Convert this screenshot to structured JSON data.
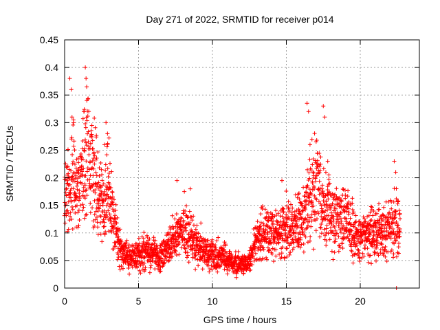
{
  "chart_data": {
    "type": "scatter",
    "title": "Day 271 of 2022, SRMTID for receiver p014",
    "xlabel": "GPS time / hours",
    "ylabel": "SRMTID / TECUs",
    "xlim": [
      0,
      24
    ],
    "ylim": [
      0,
      0.45
    ],
    "xticks": [
      0,
      5,
      10,
      15,
      20
    ],
    "yticks": [
      0,
      0.05,
      0.1,
      0.15,
      0.2,
      0.25,
      0.3,
      0.35,
      0.4,
      0.45
    ],
    "grid": true,
    "marker": "+",
    "color": "#ff0000",
    "series": [
      {
        "name": "SRMTID p014",
        "trend": [
          [
            0.0,
            0.16
          ],
          [
            0.3,
            0.19
          ],
          [
            0.6,
            0.21
          ],
          [
            0.9,
            0.17
          ],
          [
            1.2,
            0.22
          ],
          [
            1.5,
            0.26
          ],
          [
            1.8,
            0.24
          ],
          [
            2.1,
            0.19
          ],
          [
            2.4,
            0.15
          ],
          [
            2.7,
            0.16
          ],
          [
            3.0,
            0.18
          ],
          [
            3.3,
            0.12
          ],
          [
            3.6,
            0.08
          ],
          [
            4.0,
            0.065
          ],
          [
            4.5,
            0.055
          ],
          [
            5.0,
            0.06
          ],
          [
            5.5,
            0.065
          ],
          [
            6.0,
            0.06
          ],
          [
            6.5,
            0.055
          ],
          [
            7.0,
            0.07
          ],
          [
            7.5,
            0.1
          ],
          [
            8.0,
            0.105
          ],
          [
            8.5,
            0.095
          ],
          [
            9.0,
            0.075
          ],
          [
            9.5,
            0.065
          ],
          [
            10.0,
            0.06
          ],
          [
            10.5,
            0.06
          ],
          [
            11.0,
            0.05
          ],
          [
            11.5,
            0.045
          ],
          [
            12.0,
            0.04
          ],
          [
            12.5,
            0.045
          ],
          [
            13.0,
            0.09
          ],
          [
            13.5,
            0.1
          ],
          [
            14.0,
            0.1
          ],
          [
            14.5,
            0.1
          ],
          [
            15.0,
            0.11
          ],
          [
            15.5,
            0.11
          ],
          [
            16.0,
            0.12
          ],
          [
            16.5,
            0.16
          ],
          [
            17.0,
            0.2
          ],
          [
            17.5,
            0.16
          ],
          [
            18.0,
            0.13
          ],
          [
            18.5,
            0.13
          ],
          [
            19.0,
            0.12
          ],
          [
            19.5,
            0.1
          ],
          [
            20.0,
            0.09
          ],
          [
            20.5,
            0.1
          ],
          [
            21.0,
            0.1
          ],
          [
            21.5,
            0.1
          ],
          [
            22.0,
            0.11
          ],
          [
            22.5,
            0.12
          ],
          [
            22.7,
            0.12
          ]
        ],
        "peaks": [
          [
            0.35,
            0.38
          ],
          [
            0.45,
            0.36
          ],
          [
            0.5,
            0.31
          ],
          [
            0.6,
            0.3
          ],
          [
            1.4,
            0.4
          ],
          [
            1.45,
            0.38
          ],
          [
            1.5,
            0.34
          ],
          [
            1.3,
            0.32
          ],
          [
            2.8,
            0.3
          ],
          [
            2.9,
            0.28
          ],
          [
            2.7,
            0.26
          ],
          [
            7.6,
            0.195
          ],
          [
            8.5,
            0.18
          ],
          [
            8.1,
            0.175
          ],
          [
            14.7,
            0.195
          ],
          [
            16.4,
            0.335
          ],
          [
            16.5,
            0.32
          ],
          [
            17.5,
            0.33
          ],
          [
            17.6,
            0.31
          ],
          [
            16.6,
            0.26
          ],
          [
            17.8,
            0.23
          ],
          [
            22.3,
            0.23
          ],
          [
            22.4,
            0.21
          ],
          [
            22.45,
            0.0
          ]
        ]
      }
    ]
  }
}
